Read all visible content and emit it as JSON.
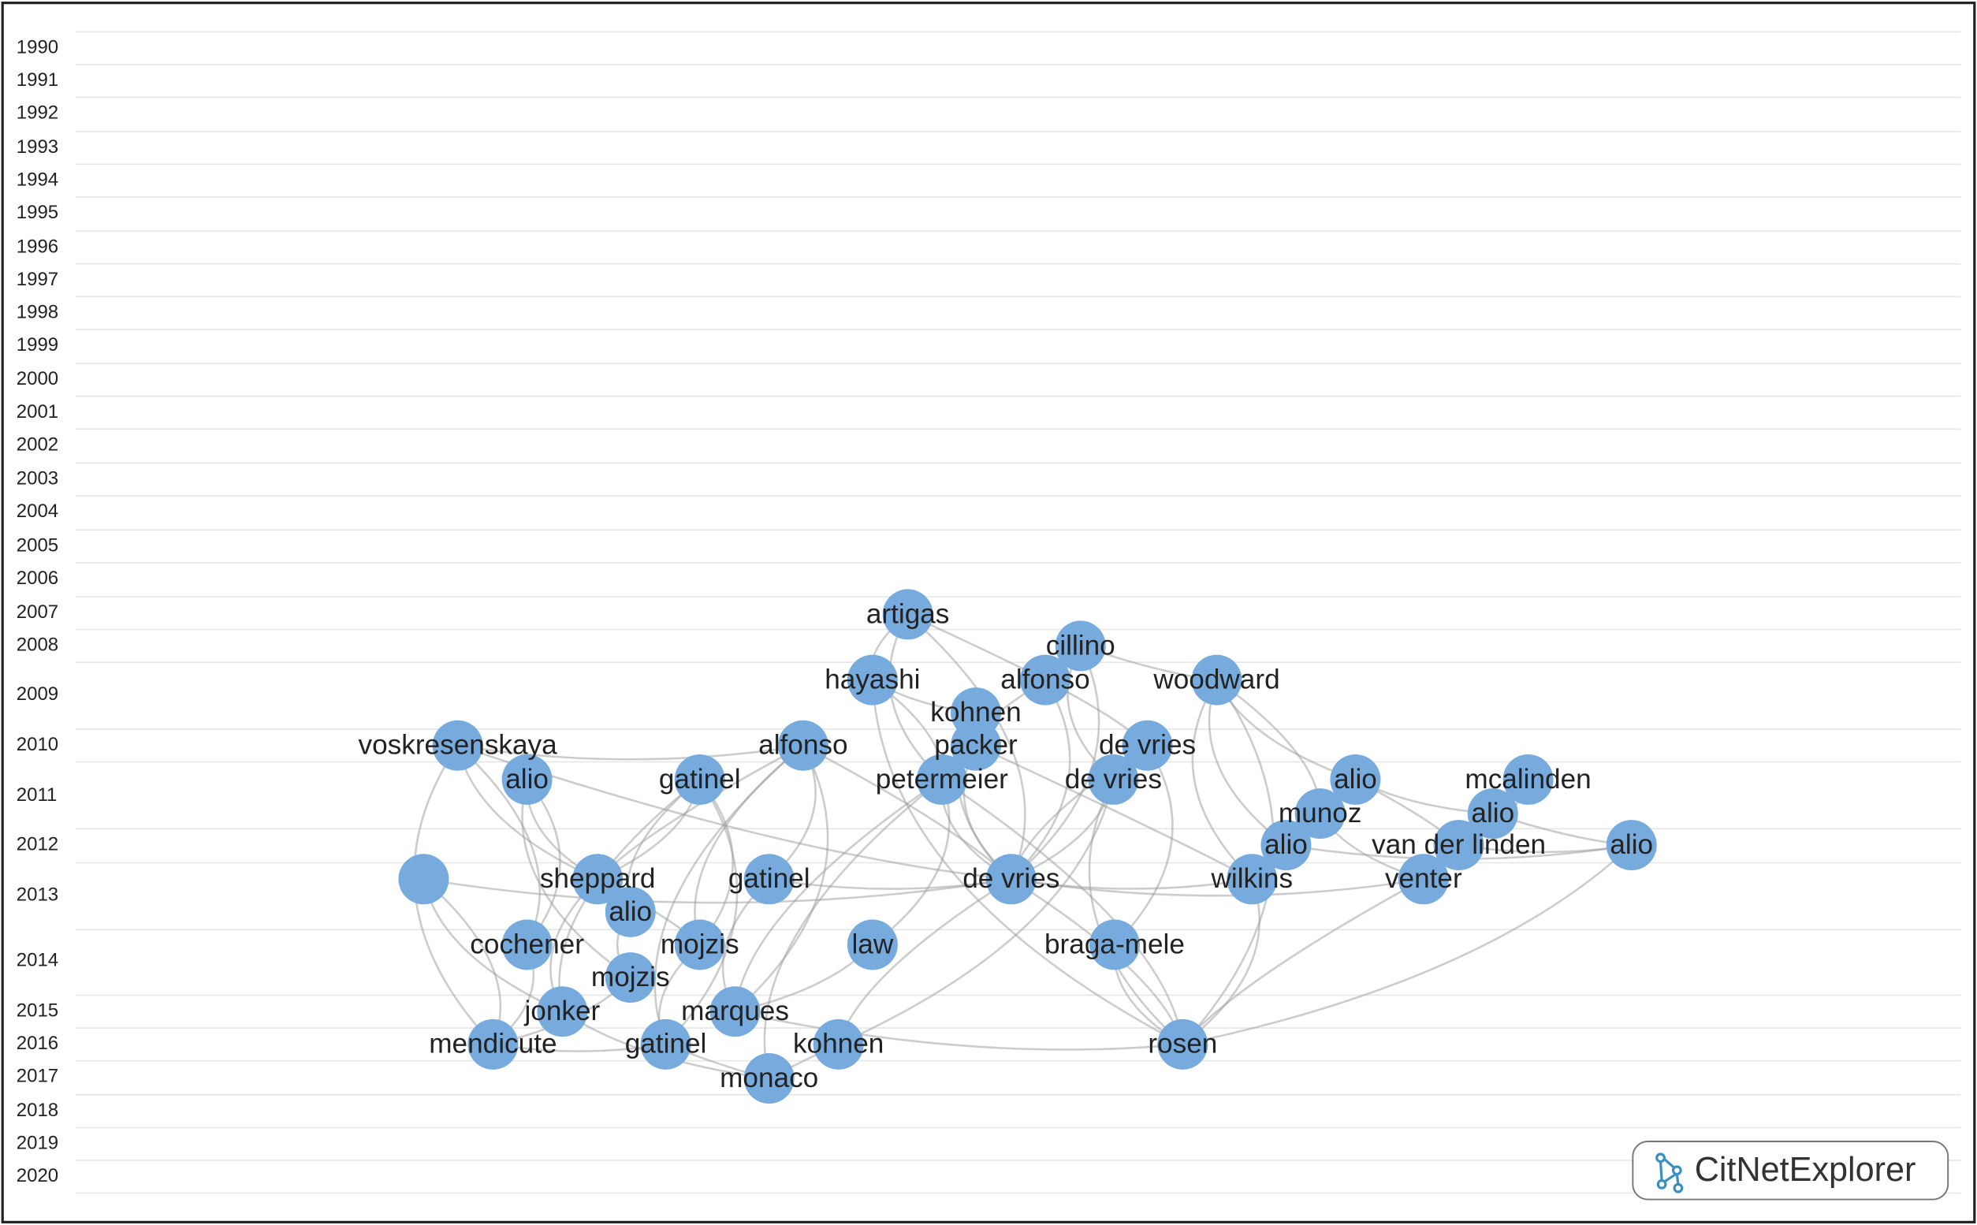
{
  "years": [
    "1990",
    "1991",
    "1992",
    "1993",
    "1994",
    "1995",
    "1996",
    "1997",
    "1998",
    "1999",
    "2000",
    "2001",
    "2002",
    "2003",
    "2004",
    "2005",
    "2006",
    "2007",
    "2008",
    "2009",
    "2010",
    "2011",
    "2012",
    "2013",
    "2014",
    "2015",
    "2016",
    "2017",
    "2018",
    "2019",
    "2020"
  ],
  "nodes": [
    {
      "label": "artigas"
    },
    {
      "label": "cillino"
    },
    {
      "label": "hayashi"
    },
    {
      "label": "alfonso"
    },
    {
      "label": "woodward"
    },
    {
      "label": "kohnen"
    },
    {
      "label": "voskresenskaya"
    },
    {
      "label": "alfonso"
    },
    {
      "label": "packer"
    },
    {
      "label": "de vries"
    },
    {
      "label": "alio"
    },
    {
      "label": "gatinel"
    },
    {
      "label": "petermeier"
    },
    {
      "label": "de vries"
    },
    {
      "label": "alio"
    },
    {
      "label": "mcalinden"
    },
    {
      "label": "munoz"
    },
    {
      "label": "alio"
    },
    {
      "label": "alio"
    },
    {
      "label": "van der linden"
    },
    {
      "label": "alio"
    },
    {
      "label": null
    },
    {
      "label": "sheppard"
    },
    {
      "label": "gatinel"
    },
    {
      "label": "de vries"
    },
    {
      "label": "wilkins"
    },
    {
      "label": "venter"
    },
    {
      "label": "alio"
    },
    {
      "label": "cochener"
    },
    {
      "label": "mojzis"
    },
    {
      "label": "law"
    },
    {
      "label": "braga-mele"
    },
    {
      "label": "mojzis"
    },
    {
      "label": "jonker"
    },
    {
      "label": "marques"
    },
    {
      "label": "mendicute"
    },
    {
      "label": "gatinel"
    },
    {
      "label": "kohnen"
    },
    {
      "label": "rosen"
    },
    {
      "label": "monaco"
    }
  ],
  "logo": {
    "text": "CitNetExplorer"
  }
}
